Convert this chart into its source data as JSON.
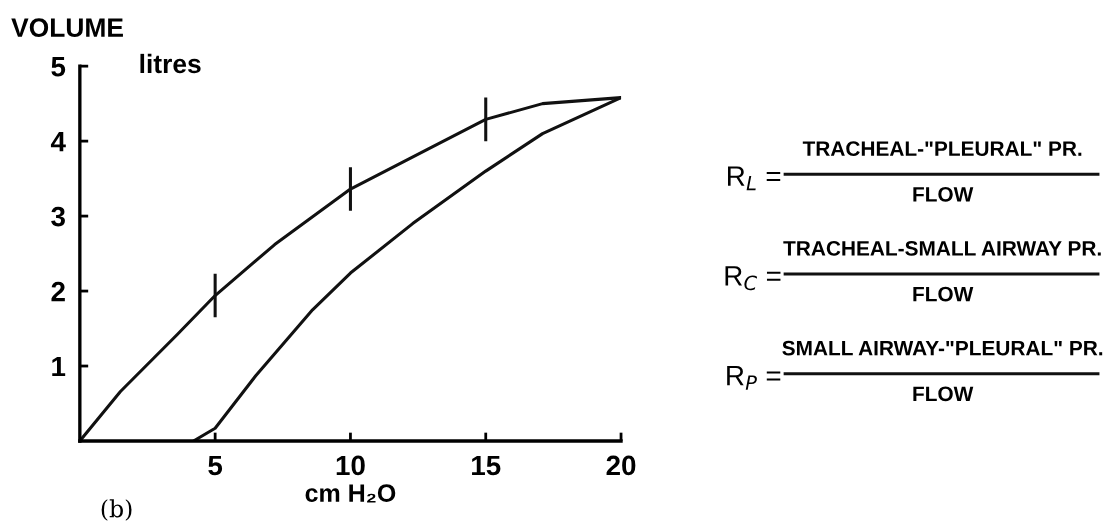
{
  "chart_data": {
    "type": "line",
    "xlabel": "cm H₂O",
    "ylabel": "VOLUME",
    "xlim": [
      0,
      20
    ],
    "ylim": [
      0,
      5
    ],
    "xticks": [
      5,
      10,
      15,
      20
    ],
    "yticks": [
      1,
      2,
      3,
      4,
      5
    ],
    "grid": false,
    "legend": false,
    "line_style": "solid",
    "series": [
      {
        "color": "#111111",
        "x": [
          0,
          1.5,
          3.6,
          5,
          7.2,
          10,
          12.9,
          15,
          17.1,
          20
        ],
        "values": [
          0,
          0.66,
          1.42,
          1.94,
          2.62,
          3.36,
          3.9,
          4.29,
          4.5,
          4.58
        ]
      },
      {
        "color": "#111111",
        "x": [
          4.2,
          5,
          6.5,
          8.6,
          10,
          12.3,
          15,
          17.1,
          20
        ],
        "values": [
          0,
          0.17,
          0.87,
          1.75,
          2.24,
          2.9,
          3.6,
          4.1,
          4.58
        ]
      }
    ],
    "annotations": [
      "litres",
      "(b)",
      "R$_{L}$ =",
      "TRACHEAL-\"PLEURAL\" PR.",
      "FLOW",
      "R$_{C}$ =",
      "TRACHEAL-SMALL AIRWAY PR.",
      "FLOW",
      "R$_{P}$ =",
      "SMALL AIRWAY-\"PLEURAL\" PR.",
      "FLOW"
    ]
  }
}
